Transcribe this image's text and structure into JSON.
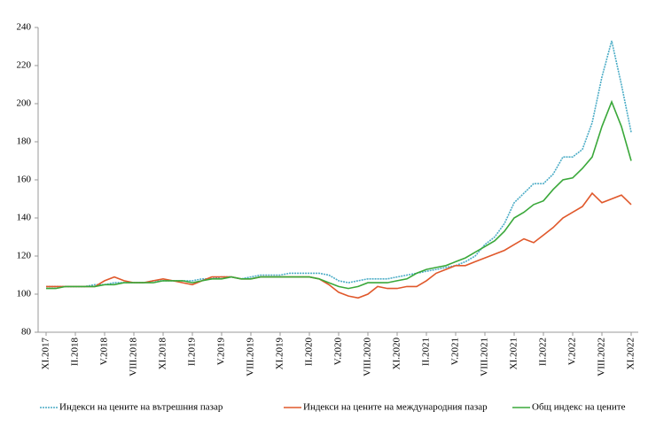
{
  "chart_data": {
    "type": "line",
    "categories": [
      "XI.2017",
      null,
      null,
      "II.2018",
      null,
      null,
      "V.2018",
      null,
      null,
      "VIII.2018",
      null,
      null,
      "XI.2018",
      null,
      null,
      "II.2019",
      null,
      null,
      "V.2019",
      null,
      null,
      "VIII.2019",
      null,
      null,
      "XI.2019",
      null,
      null,
      "II.2020",
      null,
      null,
      "V.2020",
      null,
      null,
      "VIII.2020",
      null,
      null,
      "XI.2020",
      null,
      null,
      "II.2021",
      null,
      null,
      "V.2021",
      null,
      null,
      "VIII.2021",
      null,
      null,
      "XI.2021",
      null,
      null,
      "II.2022",
      null,
      null,
      "V.2022",
      null,
      null,
      "VIII.2022",
      null,
      null,
      "XI.2022"
    ],
    "series": [
      {
        "name": "Индекси на цените на вътрешния пазар",
        "color": "#4bacc6",
        "dashed": true,
        "values": [
          104,
          104,
          104,
          104,
          104,
          105,
          105,
          106,
          106,
          106,
          106,
          107,
          107,
          107,
          107,
          107,
          108,
          108,
          109,
          109,
          108,
          109,
          110,
          110,
          110,
          111,
          111,
          111,
          111,
          110,
          107,
          106,
          107,
          108,
          108,
          108,
          109,
          110,
          111,
          112,
          113,
          114,
          115,
          117,
          120,
          126,
          130,
          137,
          148,
          153,
          158,
          158,
          163,
          172,
          172,
          176,
          190,
          214,
          233,
          210,
          185
        ]
      },
      {
        "name": "Индекси на цените на международния пазар",
        "color": "#e0582b",
        "dashed": false,
        "values": [
          104,
          104,
          104,
          104,
          104,
          104,
          107,
          109,
          107,
          106,
          106,
          107,
          108,
          107,
          106,
          105,
          107,
          109,
          109,
          109,
          108,
          108,
          109,
          109,
          109,
          109,
          109,
          109,
          108,
          105,
          101,
          99,
          98,
          100,
          104,
          103,
          103,
          104,
          104,
          107,
          111,
          113,
          115,
          115,
          117,
          119,
          121,
          123,
          126,
          129,
          127,
          131,
          135,
          140,
          143,
          146,
          153,
          148,
          150,
          152,
          147
        ]
      },
      {
        "name": "Общ индекс на цените",
        "color": "#3aa83a",
        "dashed": false,
        "values": [
          103,
          103,
          104,
          104,
          104,
          104,
          105,
          105,
          106,
          106,
          106,
          106,
          107,
          107,
          107,
          106,
          107,
          108,
          108,
          109,
          108,
          108,
          109,
          109,
          109,
          109,
          109,
          109,
          108,
          106,
          104,
          103,
          104,
          106,
          106,
          106,
          107,
          108,
          111,
          113,
          114,
          115,
          117,
          119,
          122,
          125,
          128,
          133,
          140,
          143,
          147,
          149,
          155,
          160,
          161,
          166,
          172,
          188,
          201,
          188,
          170
        ]
      }
    ],
    "ylim": [
      80,
      240
    ],
    "yticks": [
      80,
      100,
      120,
      140,
      160,
      180,
      200,
      220,
      240
    ],
    "grid": false,
    "legend": "bottom"
  }
}
